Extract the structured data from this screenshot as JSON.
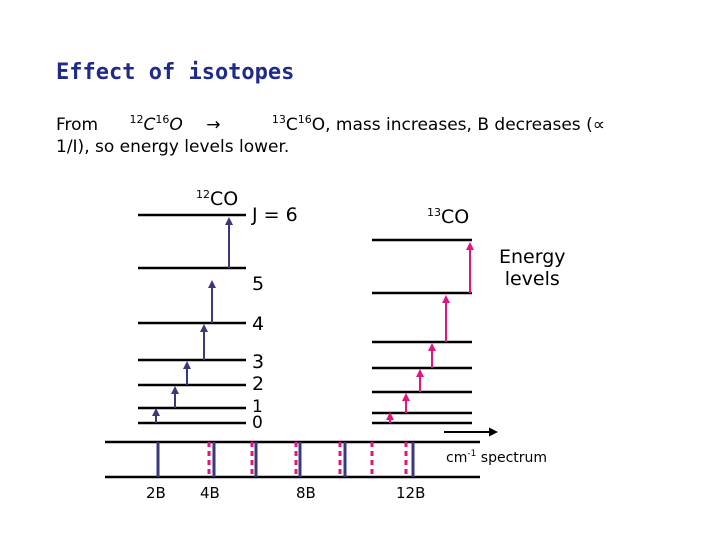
{
  "title": "Effect of isotopes",
  "description": {
    "from_word": "From",
    "iso1_mass_c": "12",
    "iso1_c": "C",
    "iso1_mass_o": "16",
    "iso1_o": "O",
    "arrow": "→",
    "iso2_mass_c": "13",
    "iso2_c": "C",
    "iso2_mass_o": "16",
    "iso2_rest": "O, mass increases, B decreases (∝",
    "line2": "1/I), so energy levels lower."
  },
  "left_molecule": {
    "mass": "12",
    "name": "CO"
  },
  "right_molecule": {
    "mass": "13",
    "name": "CO"
  },
  "j_labels": [
    "J = 6",
    "5",
    "4",
    "3",
    "2",
    "1",
    "0"
  ],
  "energy_levels_label": [
    "Energy",
    "levels"
  ],
  "spectrum": {
    "label_main": "cm",
    "label_sup": "-1",
    "label_rest": " spectrum"
  },
  "spectrum_line_labels": [
    "2B",
    "4B",
    "8B",
    "12B"
  ],
  "colors": {
    "title": "#1f2a8c",
    "co12_transition": "#3a3a7a",
    "co13_transition": "#e0157e",
    "level_line": "#000000"
  }
}
